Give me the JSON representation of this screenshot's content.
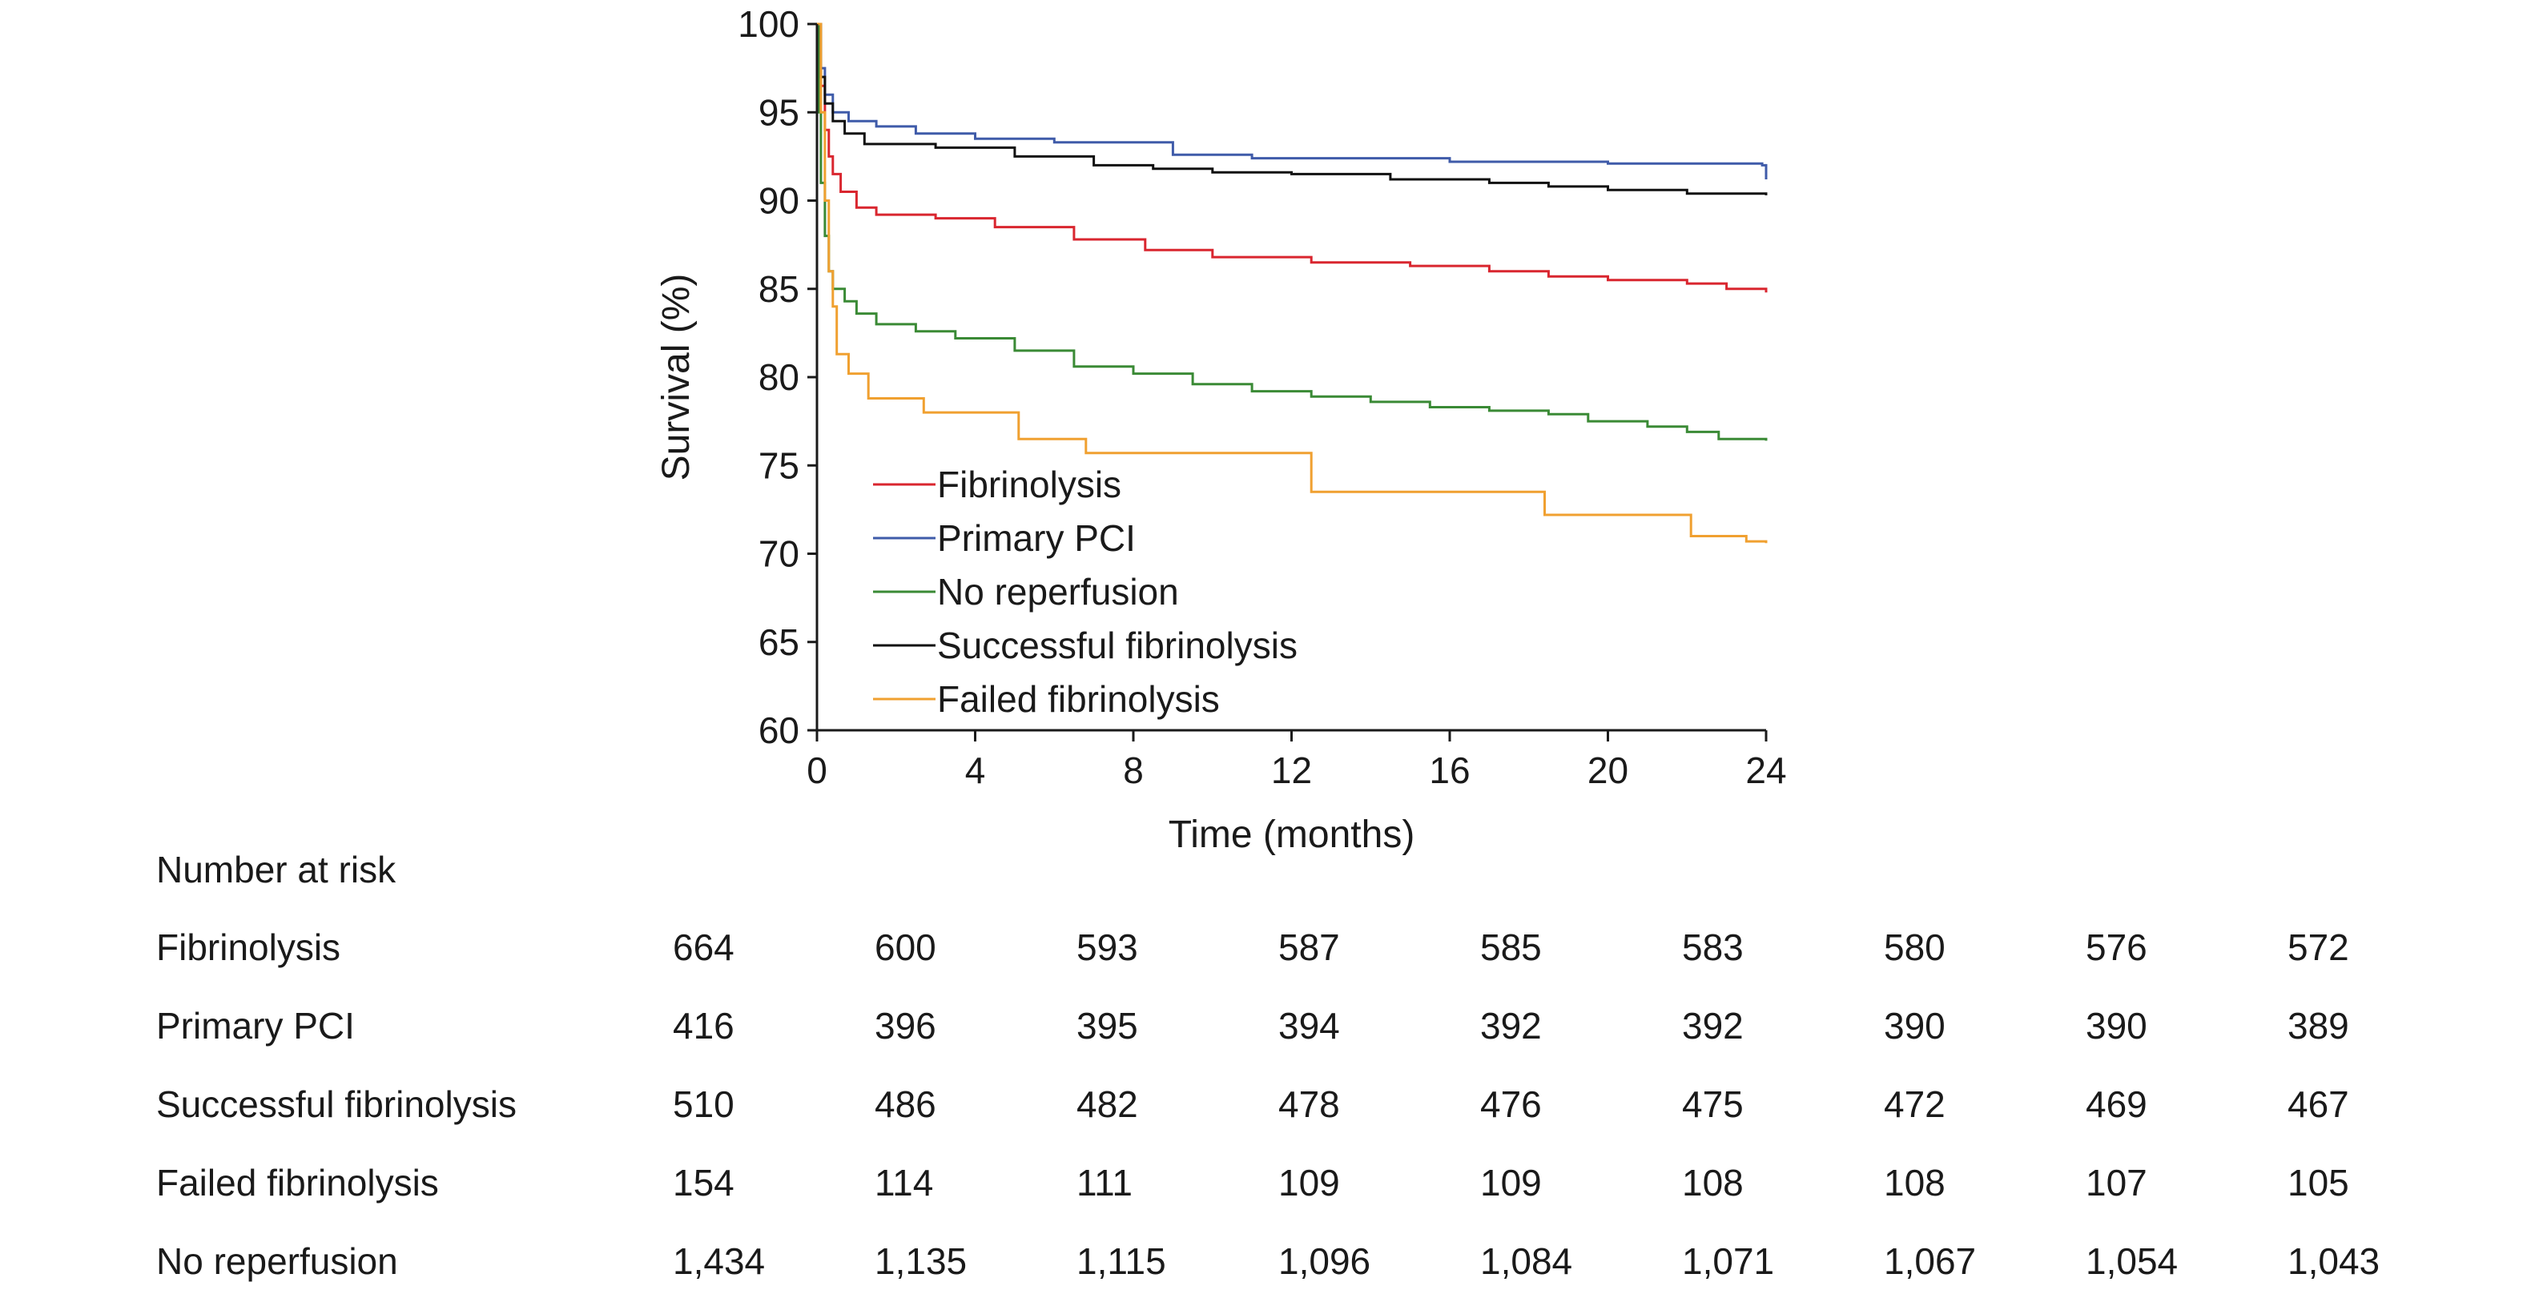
{
  "chart_data": {
    "type": "line",
    "step": true,
    "title": "",
    "xlabel": "Time (months)",
    "ylabel": "Survival (%)",
    "xlim": [
      0,
      24
    ],
    "ylim": [
      60,
      100
    ],
    "xticks": [
      0,
      4,
      8,
      12,
      16,
      20,
      24
    ],
    "yticks": [
      60,
      65,
      70,
      75,
      80,
      85,
      90,
      95,
      100
    ],
    "grid": false,
    "legend_position": "inside-bottom-left",
    "series": [
      {
        "name": "Fibrinolysis",
        "color": "#d9262f",
        "points": [
          [
            0,
            100
          ],
          [
            0.1,
            96.5
          ],
          [
            0.2,
            94
          ],
          [
            0.3,
            92.5
          ],
          [
            0.4,
            91.5
          ],
          [
            0.6,
            90.5
          ],
          [
            1.0,
            89.6
          ],
          [
            1.5,
            89.2
          ],
          [
            3.0,
            89.0
          ],
          [
            4.5,
            88.5
          ],
          [
            6.5,
            87.8
          ],
          [
            8.3,
            87.2
          ],
          [
            10.0,
            86.8
          ],
          [
            12.5,
            86.5
          ],
          [
            15.0,
            86.3
          ],
          [
            17.0,
            86.0
          ],
          [
            18.5,
            85.7
          ],
          [
            20.0,
            85.5
          ],
          [
            22.0,
            85.3
          ],
          [
            23.0,
            85.0
          ],
          [
            24,
            84.8
          ]
        ]
      },
      {
        "name": "Primary PCI",
        "color": "#3f5ba9",
        "points": [
          [
            0,
            100
          ],
          [
            0.1,
            97.5
          ],
          [
            0.2,
            96
          ],
          [
            0.4,
            95
          ],
          [
            0.8,
            94.5
          ],
          [
            1.5,
            94.2
          ],
          [
            2.5,
            93.8
          ],
          [
            4.0,
            93.5
          ],
          [
            6.0,
            93.3
          ],
          [
            9.0,
            92.6
          ],
          [
            11.0,
            92.4
          ],
          [
            16.0,
            92.2
          ],
          [
            20.0,
            92.1
          ],
          [
            23.9,
            92.0
          ],
          [
            24,
            91.2
          ]
        ]
      },
      {
        "name": "No reperfusion",
        "color": "#3a8a35",
        "points": [
          [
            0,
            100
          ],
          [
            0.05,
            95
          ],
          [
            0.1,
            91
          ],
          [
            0.2,
            88
          ],
          [
            0.3,
            86
          ],
          [
            0.4,
            85
          ],
          [
            0.7,
            84.3
          ],
          [
            1.0,
            83.6
          ],
          [
            1.5,
            83.0
          ],
          [
            2.5,
            82.6
          ],
          [
            3.5,
            82.2
          ],
          [
            5.0,
            81.5
          ],
          [
            6.5,
            80.6
          ],
          [
            8.0,
            80.2
          ],
          [
            9.5,
            79.6
          ],
          [
            11.0,
            79.2
          ],
          [
            12.5,
            78.9
          ],
          [
            14.0,
            78.6
          ],
          [
            15.5,
            78.3
          ],
          [
            17.0,
            78.1
          ],
          [
            18.5,
            77.9
          ],
          [
            19.5,
            77.5
          ],
          [
            21.0,
            77.2
          ],
          [
            22.0,
            76.9
          ],
          [
            22.8,
            76.5
          ],
          [
            24,
            76.4
          ]
        ]
      },
      {
        "name": "Successful fibrinolysis",
        "color": "#111111",
        "points": [
          [
            0,
            100
          ],
          [
            0.1,
            97
          ],
          [
            0.2,
            95.5
          ],
          [
            0.4,
            94.5
          ],
          [
            0.7,
            93.8
          ],
          [
            1.2,
            93.2
          ],
          [
            3.0,
            93.0
          ],
          [
            5.0,
            92.5
          ],
          [
            7.0,
            92.0
          ],
          [
            8.5,
            91.8
          ],
          [
            10.0,
            91.6
          ],
          [
            12.0,
            91.5
          ],
          [
            14.5,
            91.2
          ],
          [
            17.0,
            91.0
          ],
          [
            18.5,
            90.8
          ],
          [
            20.0,
            90.6
          ],
          [
            22.0,
            90.4
          ],
          [
            24,
            90.3
          ]
        ]
      },
      {
        "name": "Failed fibrinolysis",
        "color": "#f0a030",
        "points": [
          [
            0,
            100
          ],
          [
            0.1,
            95
          ],
          [
            0.2,
            90
          ],
          [
            0.3,
            86
          ],
          [
            0.4,
            84
          ],
          [
            0.5,
            81.3
          ],
          [
            0.8,
            80.2
          ],
          [
            1.3,
            78.8
          ],
          [
            2.7,
            78.0
          ],
          [
            5.1,
            76.5
          ],
          [
            6.8,
            75.7
          ],
          [
            12.5,
            73.5
          ],
          [
            18.4,
            72.2
          ],
          [
            22.1,
            71.0
          ],
          [
            23.5,
            70.7
          ],
          [
            24,
            70.6
          ]
        ]
      }
    ],
    "risk_table": {
      "title": "Number at risk",
      "rows": [
        {
          "label": "Fibrinolysis",
          "values": [
            "664",
            "600",
            "593",
            "587",
            "585",
            "583",
            "580",
            "576",
            "572"
          ]
        },
        {
          "label": "Primary PCI",
          "values": [
            "416",
            "396",
            "395",
            "394",
            "392",
            "392",
            "390",
            "390",
            "389"
          ]
        },
        {
          "label": "Successful fibrinolysis",
          "values": [
            "510",
            "486",
            "482",
            "478",
            "476",
            "475",
            "472",
            "469",
            "467"
          ]
        },
        {
          "label": "Failed fibrinolysis",
          "values": [
            "154",
            "114",
            "111",
            "109",
            "109",
            "108",
            "108",
            "107",
            "105"
          ]
        },
        {
          "label": "No reperfusion",
          "values": [
            "1,434",
            "1,135",
            "1,115",
            "1,096",
            "1,084",
            "1,071",
            "1,067",
            "1,054",
            "1,043"
          ]
        }
      ]
    }
  }
}
